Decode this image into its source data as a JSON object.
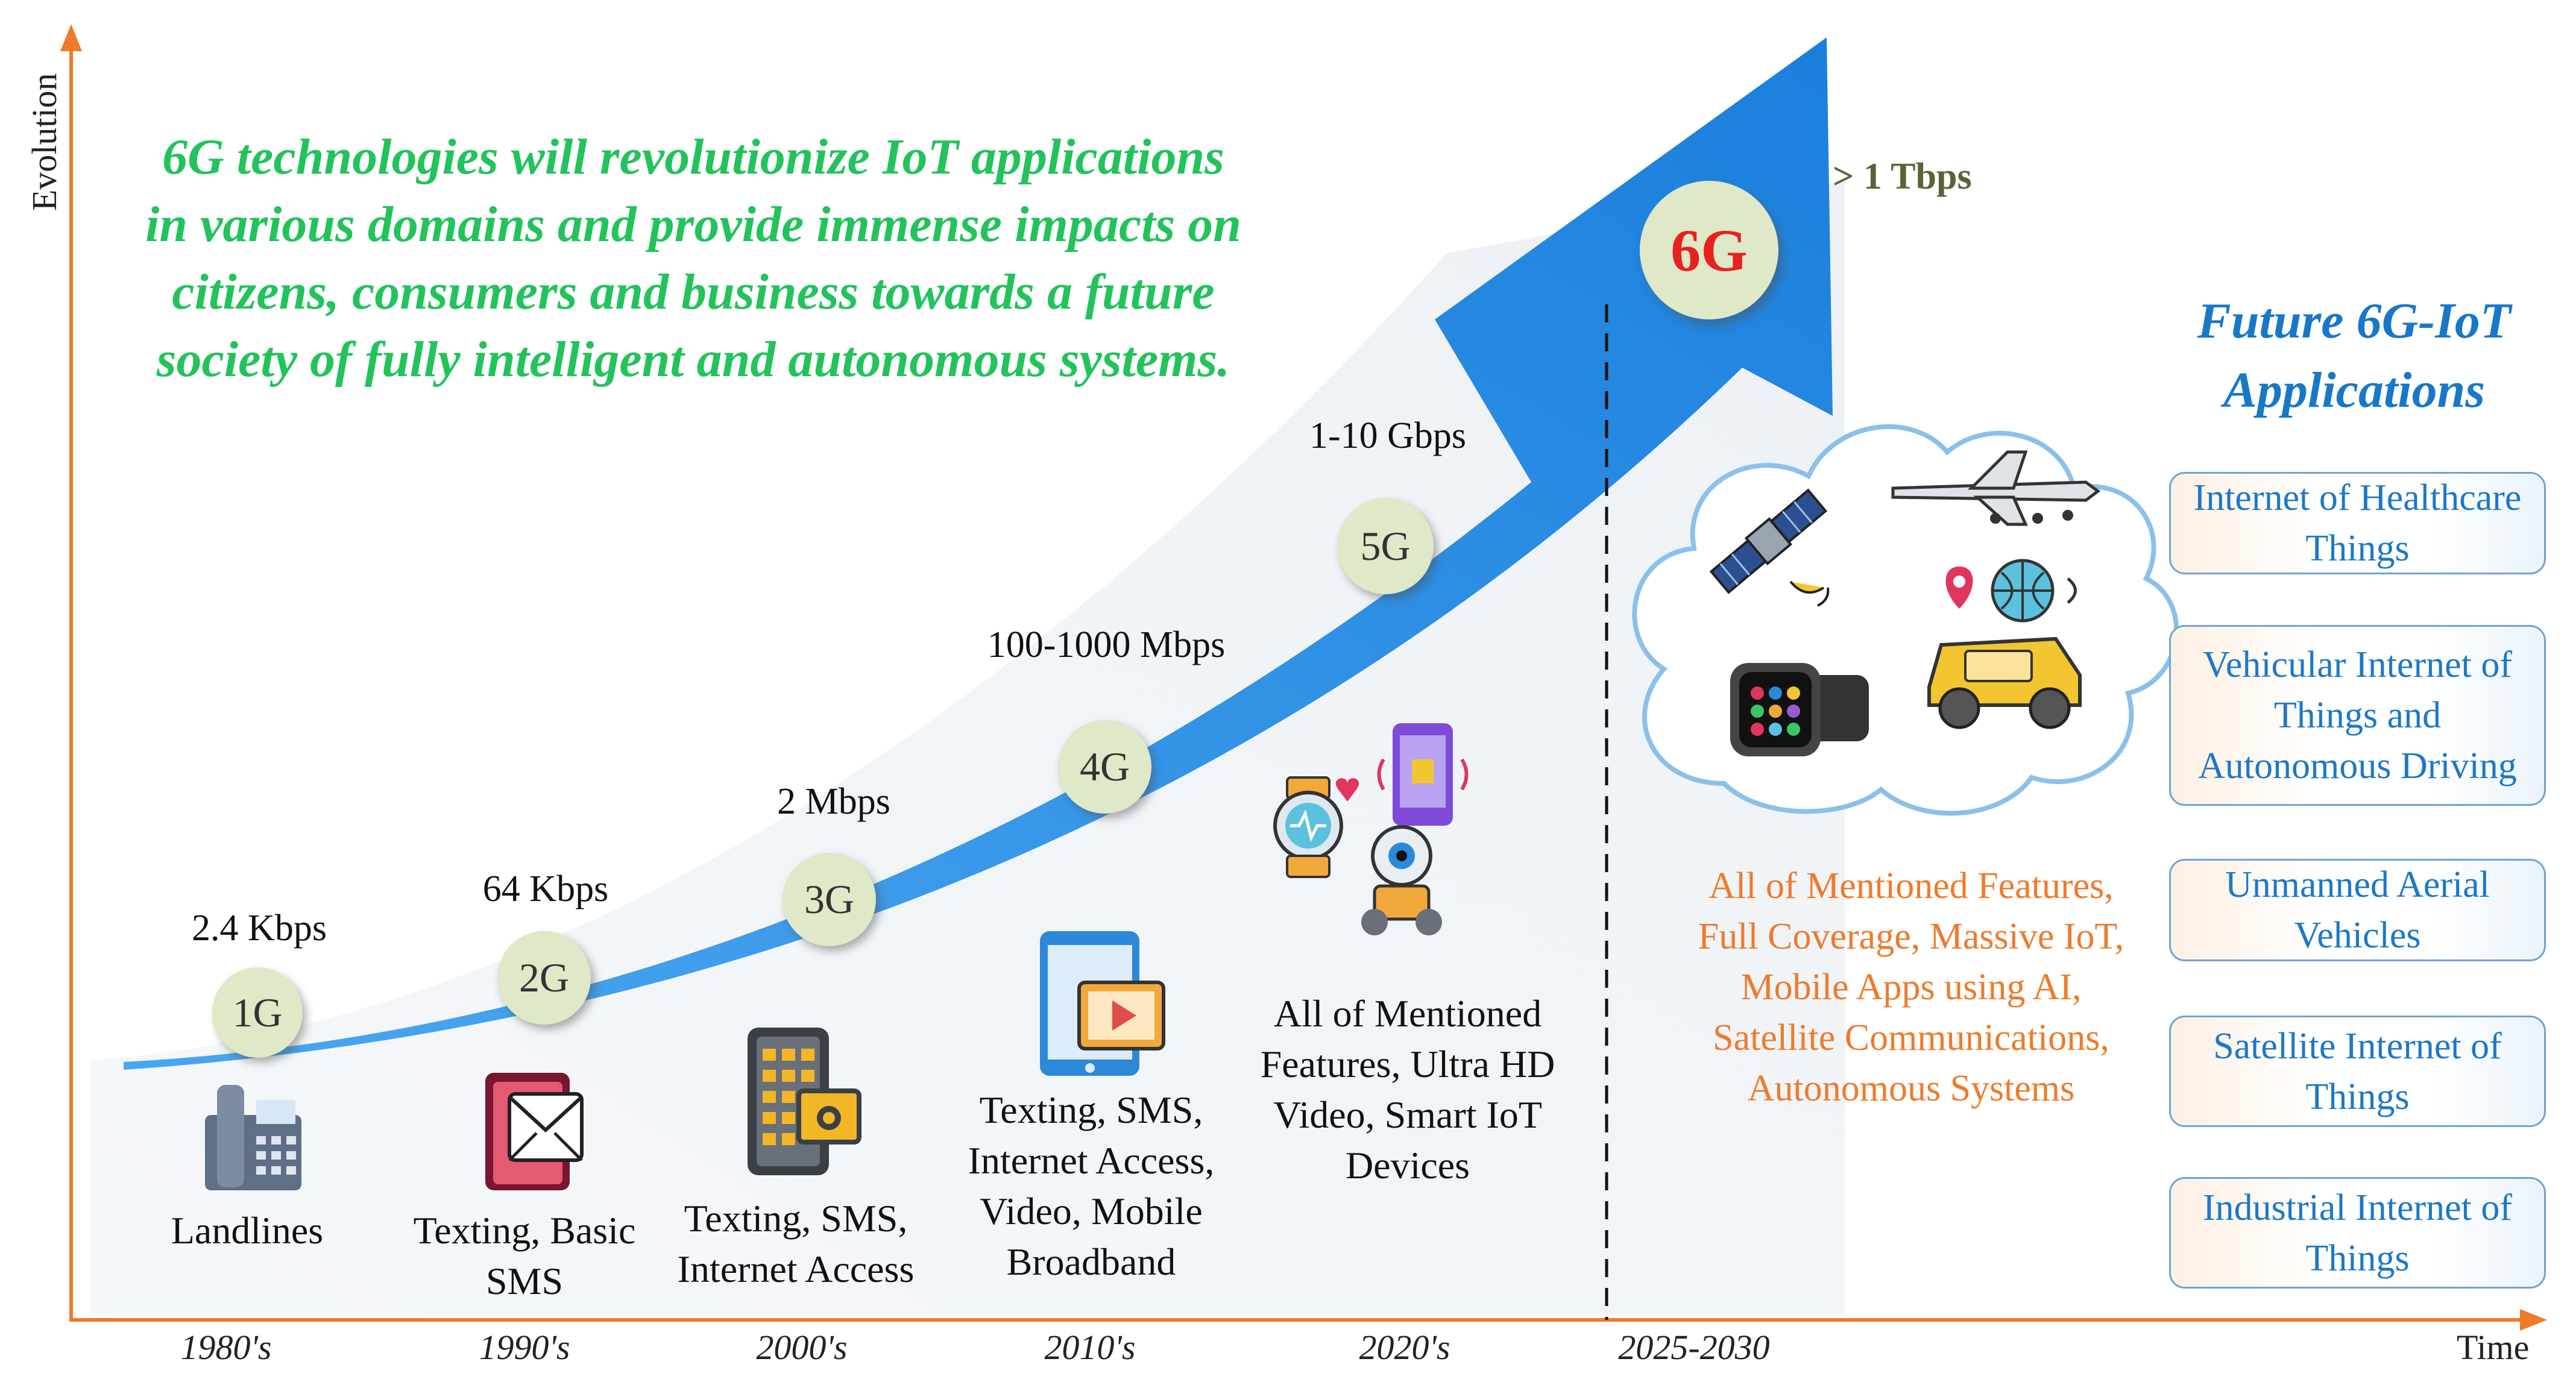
{
  "headline": [
    "6G technologies will revolutionize IoT applications",
    "in various domains and provide immense impacts on",
    "citizens, consumers and business towards a future",
    "society of fully intelligent and autonomous systems."
  ],
  "axes": {
    "y_label": "Evolution",
    "x_label": "Time"
  },
  "generations": [
    {
      "label": "1G",
      "speed": "2.4 Kbps",
      "features": [
        "Landlines"
      ],
      "decade": "1980's",
      "icon": "landline-phone-icon"
    },
    {
      "label": "2G",
      "speed": "64 Kbps",
      "features": [
        "Texting, Basic",
        "SMS"
      ],
      "decade": "1990's",
      "icon": "envelope-sms-icon"
    },
    {
      "label": "3G",
      "speed": "2 Mbps",
      "features": [
        "Texting, SMS,",
        "Internet Access"
      ],
      "decade": "2000's",
      "icon": "feature-phone-icon"
    },
    {
      "label": "4G",
      "speed": "100-1000 Mbps",
      "features": [
        "Texting, SMS,",
        "Internet Access,",
        "Video, Mobile",
        "Broadband"
      ],
      "decade": "2010's",
      "icon": "tablet-video-icon"
    },
    {
      "label": "5G",
      "speed": "1-10 Gbps",
      "features": [
        "All of Mentioned",
        "Features, Ultra HD",
        "Video, Smart IoT",
        "Devices"
      ],
      "decade": "2020's",
      "icon": "smart-devices-icon"
    }
  ],
  "six_g": {
    "label": "6G",
    "speed": "> 1 Tbps",
    "decade": "2025-2030",
    "features": [
      "All of Mentioned Features,",
      "Full Coverage, Massive IoT,",
      "Mobile Apps using AI,",
      "Satellite Communications,",
      "Autonomous Systems"
    ],
    "cloud_icons": [
      "satellite-icon",
      "drone-icon",
      "smartwatch-icon",
      "autonomous-car-icon"
    ]
  },
  "future": {
    "title": [
      "Future 6G-IoT",
      "Applications"
    ],
    "applications": [
      [
        "Internet of Healthcare",
        "Things"
      ],
      [
        "Vehicular Internet of",
        "Things and",
        "Autonomous Driving"
      ],
      [
        "Unmanned Aerial",
        "Vehicles"
      ],
      [
        "Satellite Internet of",
        "Things"
      ],
      [
        "Industrial Internet of",
        "Things"
      ]
    ]
  },
  "colors": {
    "arrow": "#2186e0",
    "headline": "#22c35b",
    "axis": "#f07a2a",
    "app_text": "#1c78c8",
    "six_g_label": "#e82020",
    "orange_text": "#f07a2a"
  }
}
